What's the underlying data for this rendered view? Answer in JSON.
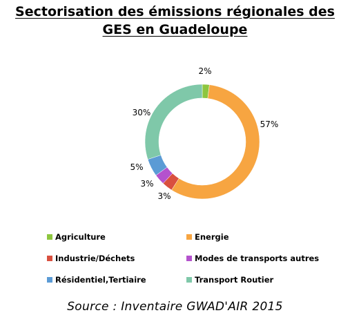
{
  "title_line1": "Sectorisation des émissions régionales des",
  "title_line2": "GES en Guadeloupe",
  "source": "Source : Inventaire GWAD'AIR 2015",
  "chart_data": {
    "type": "pie",
    "donut": true,
    "legend_position": "bottom",
    "title": "Sectorisation des émissions régionales des GES en Guadeloupe",
    "categories": [
      "Agriculture",
      "Energie",
      "Industrie/Déchets",
      "Modes de transports autres",
      "Résidentiel,Tertiaire",
      "Transport Routier"
    ],
    "values": [
      2,
      57,
      3,
      3,
      5,
      30
    ],
    "labels": [
      "2%",
      "57%",
      "3%",
      "3%",
      "5%",
      "30%"
    ],
    "colors": [
      "#8dc63f",
      "#f7a541",
      "#d9503f",
      "#b452cd",
      "#5b9bd5",
      "#7fc8a9"
    ]
  }
}
